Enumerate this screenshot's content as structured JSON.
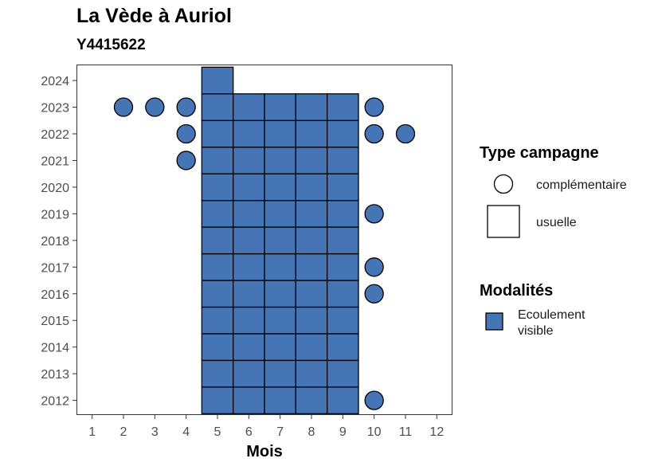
{
  "chart_data": {
    "type": "scatter",
    "title": "La Vède à Auriol",
    "subtitle": "Y4415622",
    "xlabel": "Mois",
    "ylabel": "",
    "x_ticks": [
      "1",
      "2",
      "3",
      "4",
      "5",
      "6",
      "7",
      "8",
      "9",
      "10",
      "11",
      "12"
    ],
    "y_ticks": [
      "2012",
      "2013",
      "2014",
      "2015",
      "2016",
      "2017",
      "2018",
      "2019",
      "2020",
      "2021",
      "2022",
      "2023",
      "2024"
    ],
    "xlim": [
      0.5,
      12.5
    ],
    "ylim": [
      2011.45,
      2024.6
    ],
    "grid": false,
    "fill_color": "#4575b4",
    "legend_position": "right",
    "legend": {
      "shape_title": "Type campagne",
      "shape_items": [
        {
          "shape": "circle",
          "label": "complémentaire"
        },
        {
          "shape": "square",
          "label": "usuelle"
        }
      ],
      "fill_title": "Modalités",
      "fill_items": [
        {
          "label": "Ecoulement",
          "label_line2": "visible",
          "color": "#4575b4"
        }
      ]
    },
    "series": [
      {
        "shape": "square",
        "modality": "Ecoulement visible",
        "points": [
          [
            5,
            2012
          ],
          [
            6,
            2012
          ],
          [
            7,
            2012
          ],
          [
            8,
            2012
          ],
          [
            9,
            2012
          ],
          [
            5,
            2013
          ],
          [
            6,
            2013
          ],
          [
            7,
            2013
          ],
          [
            8,
            2013
          ],
          [
            9,
            2013
          ],
          [
            5,
            2014
          ],
          [
            6,
            2014
          ],
          [
            7,
            2014
          ],
          [
            8,
            2014
          ],
          [
            9,
            2014
          ],
          [
            5,
            2015
          ],
          [
            6,
            2015
          ],
          [
            7,
            2015
          ],
          [
            8,
            2015
          ],
          [
            9,
            2015
          ],
          [
            5,
            2016
          ],
          [
            6,
            2016
          ],
          [
            7,
            2016
          ],
          [
            8,
            2016
          ],
          [
            9,
            2016
          ],
          [
            5,
            2017
          ],
          [
            6,
            2017
          ],
          [
            7,
            2017
          ],
          [
            8,
            2017
          ],
          [
            9,
            2017
          ],
          [
            5,
            2018
          ],
          [
            6,
            2018
          ],
          [
            7,
            2018
          ],
          [
            8,
            2018
          ],
          [
            9,
            2018
          ],
          [
            5,
            2019
          ],
          [
            6,
            2019
          ],
          [
            7,
            2019
          ],
          [
            8,
            2019
          ],
          [
            9,
            2019
          ],
          [
            5,
            2020
          ],
          [
            6,
            2020
          ],
          [
            7,
            2020
          ],
          [
            8,
            2020
          ],
          [
            9,
            2020
          ],
          [
            5,
            2021
          ],
          [
            6,
            2021
          ],
          [
            7,
            2021
          ],
          [
            8,
            2021
          ],
          [
            9,
            2021
          ],
          [
            5,
            2022
          ],
          [
            6,
            2022
          ],
          [
            7,
            2022
          ],
          [
            8,
            2022
          ],
          [
            9,
            2022
          ],
          [
            5,
            2023
          ],
          [
            6,
            2023
          ],
          [
            7,
            2023
          ],
          [
            8,
            2023
          ],
          [
            9,
            2023
          ],
          [
            5,
            2024
          ]
        ]
      },
      {
        "shape": "circle",
        "modality": "Ecoulement visible",
        "points": [
          [
            2,
            2023
          ],
          [
            3,
            2023
          ],
          [
            4,
            2023
          ],
          [
            10,
            2023
          ],
          [
            4,
            2022
          ],
          [
            10,
            2022
          ],
          [
            11,
            2022
          ],
          [
            4,
            2021
          ],
          [
            10,
            2019
          ],
          [
            10,
            2017
          ],
          [
            10,
            2016
          ],
          [
            10,
            2012
          ]
        ]
      }
    ]
  }
}
